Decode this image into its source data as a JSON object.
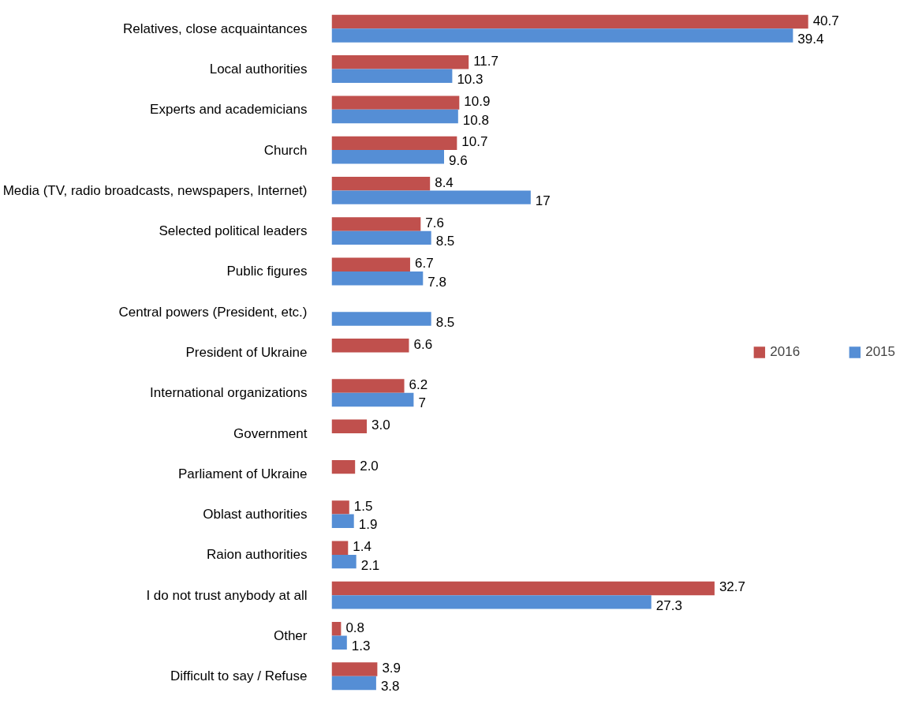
{
  "chart_data": {
    "type": "bar",
    "orientation": "horizontal",
    "categories": [
      "Relatives, close acquaintances",
      "Local authorities",
      "Experts and academicians",
      "Church",
      "Media (TV, radio broadcasts, newspapers, Internet)",
      "Selected political leaders",
      "Public figures",
      "Central powers (President, etc.)",
      "President of Ukraine",
      "International organizations",
      "Government",
      "Parliament of Ukraine",
      "Oblast authorities",
      "Raion authorities",
      "I do not trust anybody at all",
      "Other",
      "Difficult to say / Refuse"
    ],
    "series": [
      {
        "name": "2016",
        "color": "#c0504d",
        "values": [
          40.7,
          11.7,
          10.9,
          10.7,
          8.4,
          7.6,
          6.7,
          null,
          6.6,
          6.2,
          3.0,
          2.0,
          1.5,
          1.4,
          32.7,
          0.8,
          3.9
        ],
        "value_labels": [
          "40.7",
          "11.7",
          "10.9",
          "10.7",
          "8.4",
          "7.6",
          "6.7",
          null,
          "6.6",
          "6.2",
          "3.0",
          "2.0",
          "1.5",
          "1.4",
          "32.7",
          "0.8",
          "3.9"
        ]
      },
      {
        "name": "2015",
        "color": "#558ed5",
        "values": [
          39.4,
          10.3,
          10.8,
          9.6,
          17,
          8.5,
          7.8,
          8.5,
          null,
          7,
          null,
          null,
          1.9,
          2.1,
          27.3,
          1.3,
          3.8
        ],
        "value_labels": [
          "39.4",
          "10.3",
          "10.8",
          "9.6",
          "17",
          "8.5",
          "7.8",
          "8.5",
          null,
          "7",
          null,
          null,
          "1.9",
          "2.1",
          "27.3",
          "1.3",
          "3.8"
        ]
      }
    ],
    "tick_labels": "y",
    "grid": false,
    "legend": "right"
  }
}
